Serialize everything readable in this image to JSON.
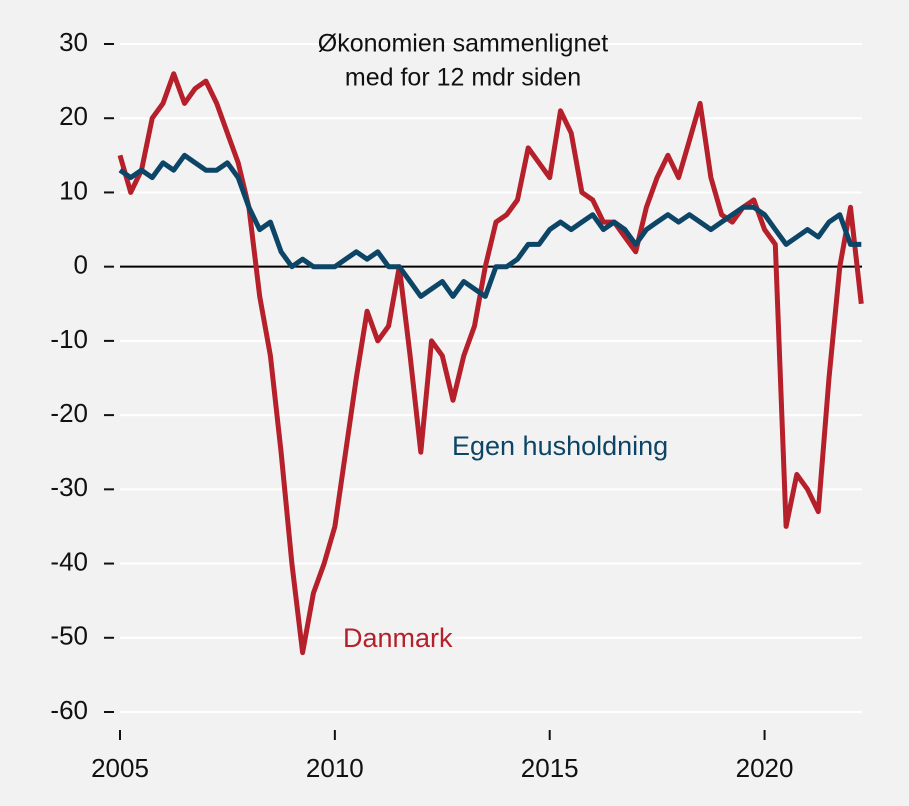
{
  "chart_data": {
    "type": "line",
    "title": [
      "Økonomien sammenlignet",
      "med for 12 mdr siden"
    ],
    "x": [
      2005,
      2005.25,
      2005.5,
      2005.75,
      2006,
      2006.25,
      2006.5,
      2006.75,
      2007,
      2007.25,
      2007.5,
      2007.75,
      2008,
      2008.25,
      2008.5,
      2008.75,
      2009,
      2009.25,
      2009.5,
      2009.75,
      2010,
      2010.25,
      2010.5,
      2010.75,
      2011,
      2011.25,
      2011.5,
      2011.75,
      2012,
      2012.25,
      2012.5,
      2012.75,
      2013,
      2013.25,
      2013.5,
      2013.75,
      2014,
      2014.25,
      2014.5,
      2014.75,
      2015,
      2015.25,
      2015.5,
      2015.75,
      2016,
      2016.25,
      2016.5,
      2016.75,
      2017,
      2017.25,
      2017.5,
      2017.75,
      2018,
      2018.25,
      2018.5,
      2018.75,
      2019,
      2019.25,
      2019.5,
      2019.75,
      2020,
      2020.25,
      2020.5,
      2020.75,
      2021,
      2021.25,
      2021.5,
      2021.75,
      2022,
      2022.25
    ],
    "series": [
      {
        "name": "Danmark",
        "color": "#b5202a",
        "values": [
          15,
          10,
          13,
          20,
          22,
          26,
          22,
          24,
          25,
          22,
          18,
          14,
          8,
          -4,
          -12,
          -25,
          -40,
          -52,
          -44,
          -40,
          -35,
          -25,
          -15,
          -6,
          -10,
          -8,
          0,
          -12,
          -25,
          -10,
          -12,
          -18,
          -12,
          -8,
          0,
          6,
          7,
          9,
          16,
          14,
          12,
          21,
          18,
          10,
          9,
          6,
          6,
          4,
          2,
          8,
          12,
          15,
          12,
          17,
          22,
          12,
          7,
          6,
          8,
          9,
          5,
          3,
          -35,
          -28,
          -30,
          -33,
          -15,
          0,
          8,
          -5
        ]
      },
      {
        "name": "Egen husholdning",
        "color": "#0d4566",
        "values": [
          13,
          12,
          13,
          12,
          14,
          13,
          15,
          14,
          13,
          13,
          14,
          12,
          8,
          5,
          6,
          2,
          0,
          1,
          0,
          0,
          0,
          1,
          2,
          1,
          2,
          0,
          0,
          -2,
          -4,
          -3,
          -2,
          -4,
          -2,
          -3,
          -4,
          0,
          0,
          1,
          3,
          3,
          5,
          6,
          5,
          6,
          7,
          5,
          6,
          5,
          3,
          5,
          6,
          7,
          6,
          7,
          6,
          5,
          6,
          7,
          8,
          8,
          7,
          5,
          3,
          4,
          5,
          4,
          6,
          7,
          3,
          3
        ]
      }
    ],
    "xlim": [
      2005,
      2022.5
    ],
    "xticks": [
      2005,
      2010,
      2015,
      2020
    ],
    "ylim": [
      -60,
      30
    ],
    "yticks": [
      30,
      20,
      10,
      0,
      -10,
      -20,
      -30,
      -40,
      -50,
      -60
    ],
    "grid": true
  }
}
